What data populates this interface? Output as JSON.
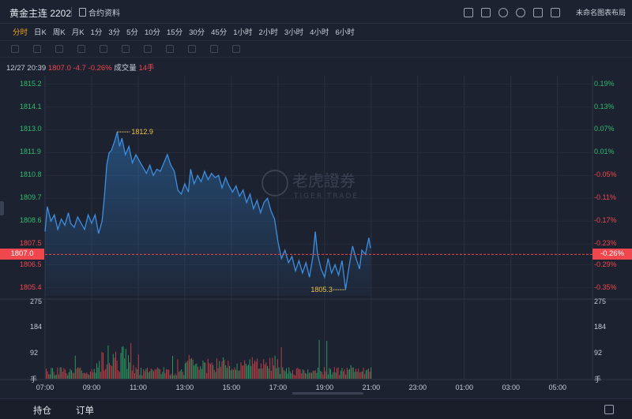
{
  "header": {
    "title": "黄金主连 2202",
    "doc_link": "合约资料",
    "layout_name": "未命名图表布局",
    "tool_icons": [
      "screen-icon",
      "edit-icon",
      "refresh-icon",
      "settings-icon",
      "fullscreen-icon",
      "layout-icon"
    ]
  },
  "periods": [
    {
      "label": "分时",
      "active": true
    },
    {
      "label": "日K"
    },
    {
      "label": "周K"
    },
    {
      "label": "月K"
    },
    {
      "label": "1分"
    },
    {
      "label": "3分"
    },
    {
      "label": "5分"
    },
    {
      "label": "10分"
    },
    {
      "label": "15分"
    },
    {
      "label": "30分"
    },
    {
      "label": "45分"
    },
    {
      "label": "1小时"
    },
    {
      "label": "2小时"
    },
    {
      "label": "3小时"
    },
    {
      "label": "4小时"
    },
    {
      "label": "6小时"
    }
  ],
  "info": {
    "datetime": "12/27 20:39",
    "price": "1807.0",
    "change": "-4.7",
    "change_pct": "-0.26%",
    "volume_label": "成交量",
    "volume": "14手"
  },
  "watermark": {
    "cn": "老虎證券",
    "en": "TIGER TRADE"
  },
  "chart_data": {
    "type": "line",
    "current_price": "1807.0",
    "current_pct": "-0.26%",
    "left_ticks": [
      "1815.2",
      "1814.1",
      "1813.0",
      "1811.9",
      "1810.8",
      "1809.7",
      "1808.6",
      "1807.5",
      "1806.5",
      "1805.4"
    ],
    "right_ticks": [
      "0.19%",
      "0.13%",
      "0.07%",
      "0.01%",
      "-0.05%",
      "-0.11%",
      "-0.17%",
      "-0.23%",
      "-0.29%",
      "-0.35%"
    ],
    "high_label": "1812.9",
    "low_label": "1805.3",
    "x_ticks": [
      "07:00",
      "09:00",
      "11:00",
      "13:00",
      "15:00",
      "17:00",
      "19:00",
      "21:00",
      "23:00",
      "01:00",
      "03:00",
      "05:00"
    ],
    "x_hours": [
      7,
      9,
      11,
      13,
      15,
      17,
      19,
      21,
      23,
      25,
      27,
      29
    ],
    "price_x_range": [
      7,
      21
    ],
    "ylim": [
      1805.0,
      1815.6
    ],
    "prices": [
      [
        7.0,
        1808.1
      ],
      [
        7.1,
        1809.3
      ],
      [
        7.25,
        1808.6
      ],
      [
        7.4,
        1808.9
      ],
      [
        7.55,
        1808.2
      ],
      [
        7.7,
        1808.7
      ],
      [
        7.85,
        1808.4
      ],
      [
        8.0,
        1809.0
      ],
      [
        8.1,
        1808.5
      ],
      [
        8.25,
        1808.3
      ],
      [
        8.4,
        1808.8
      ],
      [
        8.55,
        1808.5
      ],
      [
        8.7,
        1808.2
      ],
      [
        8.85,
        1808.9
      ],
      [
        9.0,
        1808.5
      ],
      [
        9.15,
        1808.9
      ],
      [
        9.3,
        1808.0
      ],
      [
        9.45,
        1808.6
      ],
      [
        9.55,
        1809.8
      ],
      [
        9.65,
        1811.3
      ],
      [
        9.75,
        1811.9
      ],
      [
        9.85,
        1812.0
      ],
      [
        10.0,
        1812.5
      ],
      [
        10.1,
        1812.9
      ],
      [
        10.2,
        1812.2
      ],
      [
        10.3,
        1812.6
      ],
      [
        10.45,
        1811.8
      ],
      [
        10.6,
        1812.2
      ],
      [
        10.75,
        1811.4
      ],
      [
        10.9,
        1811.8
      ],
      [
        11.05,
        1811.5
      ],
      [
        11.2,
        1811.2
      ],
      [
        11.35,
        1810.9
      ],
      [
        11.5,
        1811.3
      ],
      [
        11.65,
        1810.8
      ],
      [
        11.8,
        1811.1
      ],
      [
        11.95,
        1811.0
      ],
      [
        12.1,
        1811.4
      ],
      [
        12.25,
        1811.8
      ],
      [
        12.4,
        1811.3
      ],
      [
        12.55,
        1811.0
      ],
      [
        12.7,
        1810.1
      ],
      [
        12.85,
        1809.9
      ],
      [
        13.0,
        1810.4
      ],
      [
        13.15,
        1810.0
      ],
      [
        13.25,
        1811.1
      ],
      [
        13.4,
        1810.4
      ],
      [
        13.55,
        1810.8
      ],
      [
        13.7,
        1810.5
      ],
      [
        13.85,
        1811.0
      ],
      [
        14.0,
        1810.6
      ],
      [
        14.15,
        1810.9
      ],
      [
        14.3,
        1810.7
      ],
      [
        14.45,
        1810.8
      ],
      [
        14.6,
        1810.2
      ],
      [
        14.75,
        1810.7
      ],
      [
        14.9,
        1810.3
      ],
      [
        15.05,
        1810.0
      ],
      [
        15.2,
        1810.3
      ],
      [
        15.35,
        1809.8
      ],
      [
        15.5,
        1810.1
      ],
      [
        15.65,
        1809.5
      ],
      [
        15.8,
        1809.9
      ],
      [
        15.95,
        1809.2
      ],
      [
        16.1,
        1809.6
      ],
      [
        16.25,
        1809.0
      ],
      [
        16.4,
        1809.5
      ],
      [
        16.55,
        1809.7
      ],
      [
        16.7,
        1809.1
      ],
      [
        16.85,
        1808.7
      ],
      [
        17.0,
        1807.6
      ],
      [
        17.15,
        1806.8
      ],
      [
        17.3,
        1807.2
      ],
      [
        17.45,
        1806.6
      ],
      [
        17.6,
        1806.9
      ],
      [
        17.75,
        1806.2
      ],
      [
        17.9,
        1806.7
      ],
      [
        18.05,
        1806.1
      ],
      [
        18.2,
        1806.6
      ],
      [
        18.35,
        1805.9
      ],
      [
        18.5,
        1806.9
      ],
      [
        18.6,
        1808.1
      ],
      [
        18.7,
        1807.0
      ],
      [
        18.85,
        1806.3
      ],
      [
        19.0,
        1805.9
      ],
      [
        19.15,
        1806.8
      ],
      [
        19.3,
        1806.1
      ],
      [
        19.45,
        1806.5
      ],
      [
        19.6,
        1806.0
      ],
      [
        19.75,
        1806.7
      ],
      [
        19.9,
        1805.3
      ],
      [
        20.05,
        1806.4
      ],
      [
        20.2,
        1807.4
      ],
      [
        20.35,
        1806.8
      ],
      [
        20.5,
        1806.3
      ],
      [
        20.6,
        1807.2
      ],
      [
        20.75,
        1807.0
      ],
      [
        20.9,
        1807.8
      ],
      [
        20.97,
        1807.3
      ]
    ],
    "volume_ticks": [
      "275",
      "184",
      "92",
      "手"
    ],
    "volume_max": 275,
    "volume_seed": 2022
  },
  "bottom": {
    "hold_label": "持仓",
    "order_label": "订单"
  }
}
